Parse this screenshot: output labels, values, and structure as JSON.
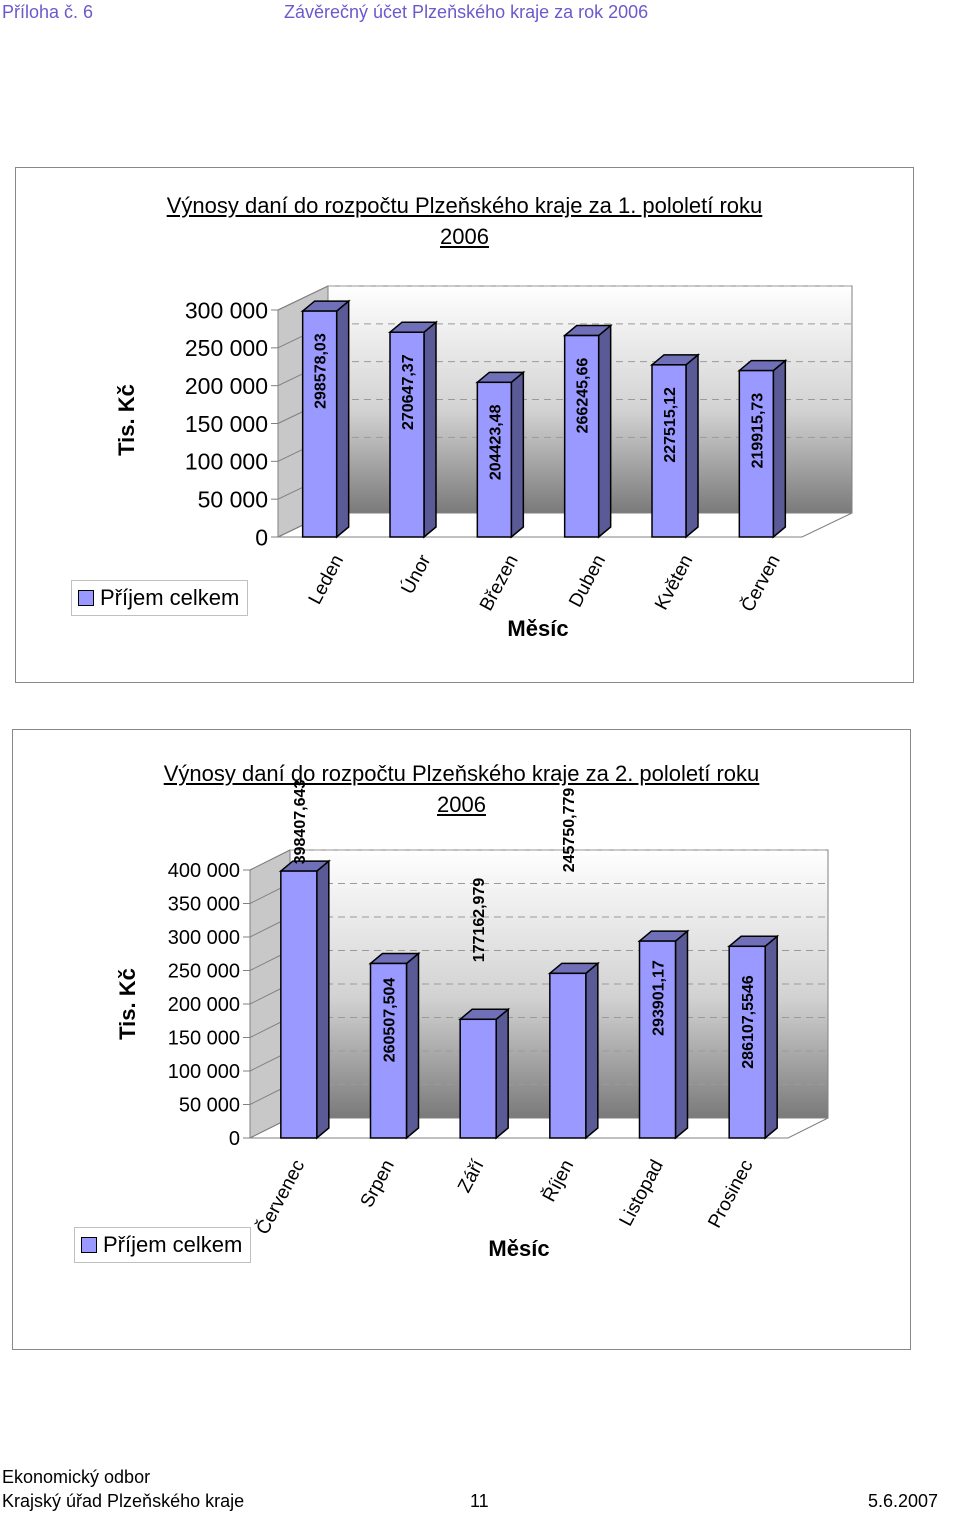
{
  "header": {
    "left": "Příloha č. 6",
    "center": "Závěrečný účet Plzeňského kraje za rok 2006"
  },
  "footer": {
    "line1": "Ekonomický odbor",
    "line2": "Krajský úřad Plzeňského kraje",
    "page": "11",
    "date": "5.6.2007"
  },
  "chart_data": [
    {
      "type": "bar",
      "title_line1": "Výnosy daní do rozpočtu Plzeňského kraje za 1. pololetí roku",
      "title_line2": "2006",
      "xlabel": "Měsíc",
      "ylabel": "Tis. Kč",
      "legend": "Příjem celkem",
      "categories": [
        "Leden",
        "Únor",
        "Březen",
        "Duben",
        "Květen",
        "Červen"
      ],
      "values": [
        298578.03,
        270647.37,
        204423.48,
        266245.66,
        227515.12,
        219915.73
      ],
      "value_labels": [
        "298578,03",
        "270647,37",
        "204423,48",
        "266245,66",
        "227515,12",
        "219915,73"
      ],
      "yticks": [
        "0",
        "50 000",
        "100 000",
        "150 000",
        "200 000",
        "250 000",
        "300 000"
      ],
      "ylim": [
        0,
        300000
      ],
      "bar_color": "#9999ff",
      "grid": true,
      "legend_position": "bottom-left"
    },
    {
      "type": "bar",
      "title_line1": "Výnosy daní do rozpočtu Plzeňského kraje za 2. pololetí roku",
      "title_line2": "2006",
      "xlabel": "Měsíc",
      "ylabel": "Tis. Kč",
      "legend": "Příjem celkem",
      "categories": [
        "Červenec",
        "Srpen",
        "Září",
        "Říjen",
        "Listopad",
        "Prosinec"
      ],
      "values": [
        398407.643,
        260507.504,
        177162.979,
        245750.779,
        293901.17,
        286107.5546
      ],
      "value_labels": [
        "398407,643",
        "260507,504",
        "177162,979",
        "245750,779",
        "293901,17",
        "286107,5546"
      ],
      "yticks": [
        "0",
        "50 000",
        "100 000",
        "150 000",
        "200 000",
        "250 000",
        "300 000",
        "350 000",
        "400 000"
      ],
      "ylim": [
        0,
        400000
      ],
      "bar_color": "#9999ff",
      "grid": true,
      "legend_position": "bottom-left"
    }
  ]
}
